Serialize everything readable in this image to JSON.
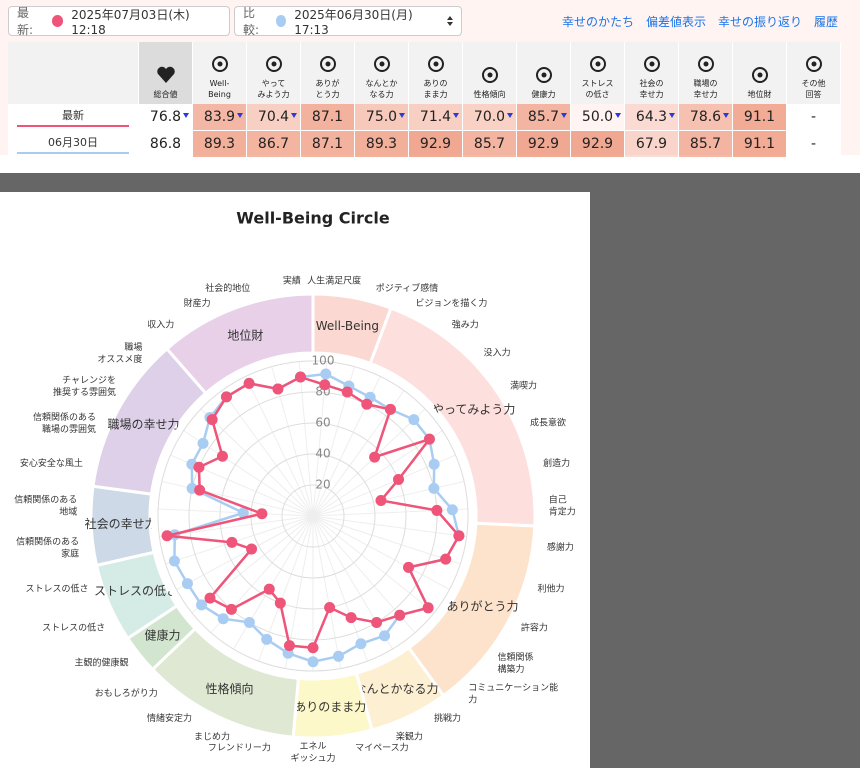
{
  "header": {
    "latest_label": "最新:",
    "latest_date": "2025年07月03日(木) 12:18",
    "compare_label": "比較:",
    "compare_date": "2025年06月30日(月) 17:13",
    "links": [
      "幸せのかたち",
      "偏差値表示",
      "幸せの振り返り",
      "履歴"
    ]
  },
  "table": {
    "columns": [
      "総合値",
      "Well-\nBeing",
      "やって\nみよう力",
      "ありが\nとう力",
      "なんとか\nなる力",
      "ありの\nまま力",
      "性格傾向",
      "健康力",
      "ストレス\nの低さ",
      "社会の\n幸せ力",
      "職場の\n幸せ力",
      "地位財",
      "その他\n回答"
    ],
    "rows": [
      {
        "label": "最新",
        "values": [
          "76.8",
          "83.9",
          "70.4",
          "87.1",
          "75.0",
          "71.4",
          "70.0",
          "85.7",
          "50.0",
          "64.3",
          "78.6",
          "91.1",
          "-"
        ]
      },
      {
        "label": "06月30日",
        "values": [
          "86.8",
          "89.3",
          "86.7",
          "87.1",
          "89.3",
          "92.9",
          "85.7",
          "92.9",
          "92.9",
          "67.9",
          "85.7",
          "91.1",
          "-"
        ]
      }
    ]
  },
  "chart_data": {
    "type": "radar",
    "title": "Well-Being Circle",
    "groups": [
      {
        "name": "Well-Being",
        "color": "#fbd8d2",
        "items": [
          "人生満足尺度",
          "ポジティブ感情"
        ]
      },
      {
        "name": "やってみよう力",
        "color": "#fde0de",
        "items": [
          "ビジョンを描く力",
          "強み力",
          "没入力",
          "満喫力",
          "成長意欲",
          "創造力",
          "自己\n肯定力"
        ]
      },
      {
        "name": "ありがとう力",
        "color": "#fde3cc",
        "items": [
          "感謝力",
          "利他力",
          "許容力",
          "信頼関係\n構築力",
          "コミュニケーション能\n力"
        ]
      },
      {
        "name": "なんとかなる力",
        "color": "#fdefd2",
        "items": [
          "挑戦力",
          "楽観力"
        ]
      },
      {
        "name": "ありのまま力",
        "color": "#fdf8c9",
        "items": [
          "マイペース力",
          "エネル\nギッシュ力"
        ]
      },
      {
        "name": "性格傾向",
        "color": "#dfe8d2",
        "items": [
          "フレンドリー力",
          "まじめ力",
          "情緒安定力",
          "おもしろがり力"
        ]
      },
      {
        "name": "健康力",
        "color": "#d2e6cf",
        "items": [
          "主観的健康観"
        ]
      },
      {
        "name": "ストレスの低さ",
        "color": "#d5ebe5",
        "items": [
          "ストレスの低さ",
          "ストレスの低さ"
        ]
      },
      {
        "name": "社会の幸せ力",
        "color": "#cdd9e7",
        "items": [
          "信頼関係のある\n家庭",
          "信頼関係のある\n地域"
        ]
      },
      {
        "name": "職場の幸せ力",
        "color": "#ddd0e8",
        "items": [
          "安心安全な風土",
          "信頼関係のある\n職場の雰囲気",
          "チャレンジを\n推奨する雰囲気",
          "職場\nオススメ度"
        ]
      },
      {
        "name": "地位財",
        "color": "#e8d1e8",
        "items": [
          "収入力",
          "財産力",
          "社会的地位",
          "実績"
        ]
      }
    ],
    "series": [
      {
        "color": "#a9cdf2",
        "values": [
          92,
          87,
          85,
          85,
          90,
          90,
          85,
          80,
          90,
          95,
          90,
          70,
          95,
          85,
          90,
          88,
          92,
          94,
          90,
          85,
          80,
          88,
          92,
          92,
          94,
          90,
          45,
          80,
          85,
          85,
          92,
          95,
          95,
          85,
          90
        ]
      },
      {
        "color": "#ef5479",
        "values": [
          85,
          83,
          80,
          85,
          55,
          90,
          60,
          45,
          80,
          95,
          90,
          70,
          95,
          85,
          80,
          70,
          60,
          85,
          85,
          60,
          55,
          80,
          85,
          45,
          55,
          95,
          33,
          75,
          80,
          70,
          90,
          95,
          95,
          85,
          90
        ]
      }
    ],
    "rlim": [
      0,
      100
    ],
    "rticks": [
      20,
      40,
      60,
      80,
      100
    ],
    "grid": true
  }
}
